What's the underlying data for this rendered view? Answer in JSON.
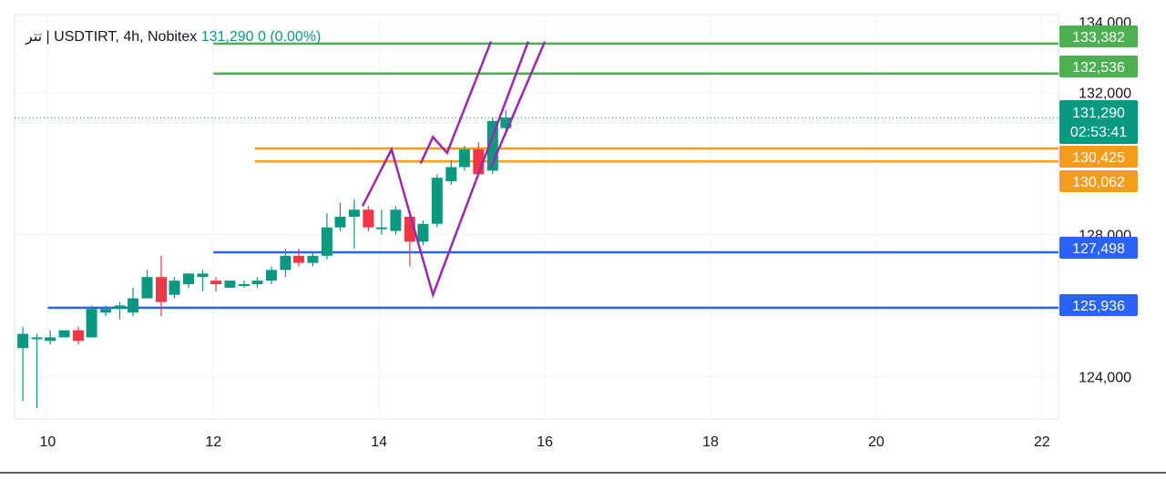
{
  "legend": {
    "symbol_text": "تتر | USDTIRT, 4h, Nobitex",
    "price": "131,290",
    "change": "0 (0.00%)"
  },
  "chart_data": {
    "type": "candlestick",
    "x_ticks": [
      10,
      12,
      14,
      16,
      18,
      20,
      22
    ],
    "y_ticks": [
      124000,
      128000,
      132000,
      134000
    ],
    "y_tick_labels": [
      "124,000",
      "128,000",
      "132,000",
      "134,000"
    ],
    "xlim": [
      9.6,
      22.2
    ],
    "ylim": [
      122800,
      134200
    ],
    "grid": true,
    "colors": {
      "up": "#089981",
      "down": "#f23645",
      "green_line": "#4caf50",
      "orange_line": "#f59c1b",
      "blue_line": "#2962ff",
      "pattern": "#9c27b0",
      "current": "#089981"
    },
    "candles": [
      {
        "x": 9.7,
        "o": 124800,
        "h": 125400,
        "l": 123300,
        "c": 125200
      },
      {
        "x": 9.87,
        "o": 125100,
        "h": 125200,
        "l": 123100,
        "c": 125100
      },
      {
        "x": 10.03,
        "o": 125000,
        "h": 125300,
        "l": 124900,
        "c": 125100
      },
      {
        "x": 10.2,
        "o": 125100,
        "h": 125300,
        "l": 125100,
        "c": 125300
      },
      {
        "x": 10.37,
        "o": 125300,
        "h": 125400,
        "l": 124900,
        "c": 125000
      },
      {
        "x": 10.53,
        "o": 125100,
        "h": 126000,
        "l": 125100,
        "c": 125900
      },
      {
        "x": 10.7,
        "o": 125800,
        "h": 126000,
        "l": 125700,
        "c": 125900
      },
      {
        "x": 10.87,
        "o": 125900,
        "h": 126100,
        "l": 125600,
        "c": 126000
      },
      {
        "x": 11.03,
        "o": 125800,
        "h": 126500,
        "l": 125700,
        "c": 126200
      },
      {
        "x": 11.2,
        "o": 126200,
        "h": 127000,
        "l": 126200,
        "c": 126800
      },
      {
        "x": 11.37,
        "o": 126800,
        "h": 127400,
        "l": 125700,
        "c": 126100
      },
      {
        "x": 11.53,
        "o": 126300,
        "h": 126800,
        "l": 126200,
        "c": 126700
      },
      {
        "x": 11.7,
        "o": 126600,
        "h": 126900,
        "l": 126500,
        "c": 126900
      },
      {
        "x": 11.87,
        "o": 126800,
        "h": 127000,
        "l": 126400,
        "c": 126900
      },
      {
        "x": 12.03,
        "o": 126700,
        "h": 126800,
        "l": 126400,
        "c": 126600
      },
      {
        "x": 12.2,
        "o": 126500,
        "h": 126700,
        "l": 126500,
        "c": 126700
      },
      {
        "x": 12.37,
        "o": 126600,
        "h": 126700,
        "l": 126500,
        "c": 126600
      },
      {
        "x": 12.53,
        "o": 126600,
        "h": 126800,
        "l": 126500,
        "c": 126700
      },
      {
        "x": 12.7,
        "o": 126700,
        "h": 127100,
        "l": 126600,
        "c": 127000
      },
      {
        "x": 12.87,
        "o": 127000,
        "h": 127600,
        "l": 126800,
        "c": 127400
      },
      {
        "x": 13.03,
        "o": 127400,
        "h": 127600,
        "l": 127100,
        "c": 127200
      },
      {
        "x": 13.2,
        "o": 127200,
        "h": 127500,
        "l": 127100,
        "c": 127400
      },
      {
        "x": 13.37,
        "o": 127400,
        "h": 128600,
        "l": 127300,
        "c": 128200
      },
      {
        "x": 13.53,
        "o": 128200,
        "h": 128900,
        "l": 128100,
        "c": 128500
      },
      {
        "x": 13.7,
        "o": 128500,
        "h": 129000,
        "l": 127600,
        "c": 128700
      },
      {
        "x": 13.87,
        "o": 128700,
        "h": 128800,
        "l": 128100,
        "c": 128200
      },
      {
        "x": 14.03,
        "o": 128200,
        "h": 128700,
        "l": 128000,
        "c": 128200
      },
      {
        "x": 14.2,
        "o": 128100,
        "h": 128800,
        "l": 128000,
        "c": 128700
      },
      {
        "x": 14.37,
        "o": 128500,
        "h": 128600,
        "l": 127100,
        "c": 127800
      },
      {
        "x": 14.53,
        "o": 127800,
        "h": 128400,
        "l": 127700,
        "c": 128300
      },
      {
        "x": 14.7,
        "o": 128300,
        "h": 129700,
        "l": 128200,
        "c": 129600
      },
      {
        "x": 14.87,
        "o": 129500,
        "h": 130100,
        "l": 129400,
        "c": 129900
      },
      {
        "x": 15.03,
        "o": 129900,
        "h": 130500,
        "l": 129800,
        "c": 130400
      },
      {
        "x": 15.2,
        "o": 130400,
        "h": 130600,
        "l": 129800,
        "c": 129700
      },
      {
        "x": 15.37,
        "o": 129800,
        "h": 131300,
        "l": 129700,
        "c": 131200
      },
      {
        "x": 15.53,
        "o": 131000,
        "h": 131500,
        "l": 130800,
        "c": 131300
      }
    ],
    "horizontal_levels": [
      {
        "name": "resistance-2",
        "y": 133382,
        "label": "133,382",
        "color": "green_line",
        "x_start": 12
      },
      {
        "name": "resistance-1",
        "y": 132536,
        "label": "132,536",
        "color": "green_line",
        "x_start": 12
      },
      {
        "name": "zone-top",
        "y": 130425,
        "label": "130,425",
        "color": "orange_line",
        "x_start": 12.5
      },
      {
        "name": "zone-bottom",
        "y": 130062,
        "label": "130,062",
        "color": "orange_line",
        "x_start": 12.5
      },
      {
        "name": "support-1",
        "y": 127498,
        "label": "127,498",
        "color": "blue_line",
        "x_start": 12
      },
      {
        "name": "support-2",
        "y": 125936,
        "label": "125,936",
        "color": "blue_line",
        "x_start": 10
      }
    ],
    "current_price": {
      "y": 131290,
      "label": "131,290",
      "countdown": "02:53:41"
    },
    "pattern_lines": [
      [
        [
          13.8,
          128800
        ],
        [
          14.15,
          130400
        ],
        [
          14.65,
          126300
        ],
        [
          15.8,
          133440
        ]
      ],
      [
        [
          14.5,
          130000
        ],
        [
          14.65,
          130750
        ],
        [
          14.82,
          130300
        ],
        [
          15.35,
          133440
        ]
      ],
      [
        [
          15.35,
          129900
        ],
        [
          16.0,
          133440
        ]
      ]
    ]
  }
}
